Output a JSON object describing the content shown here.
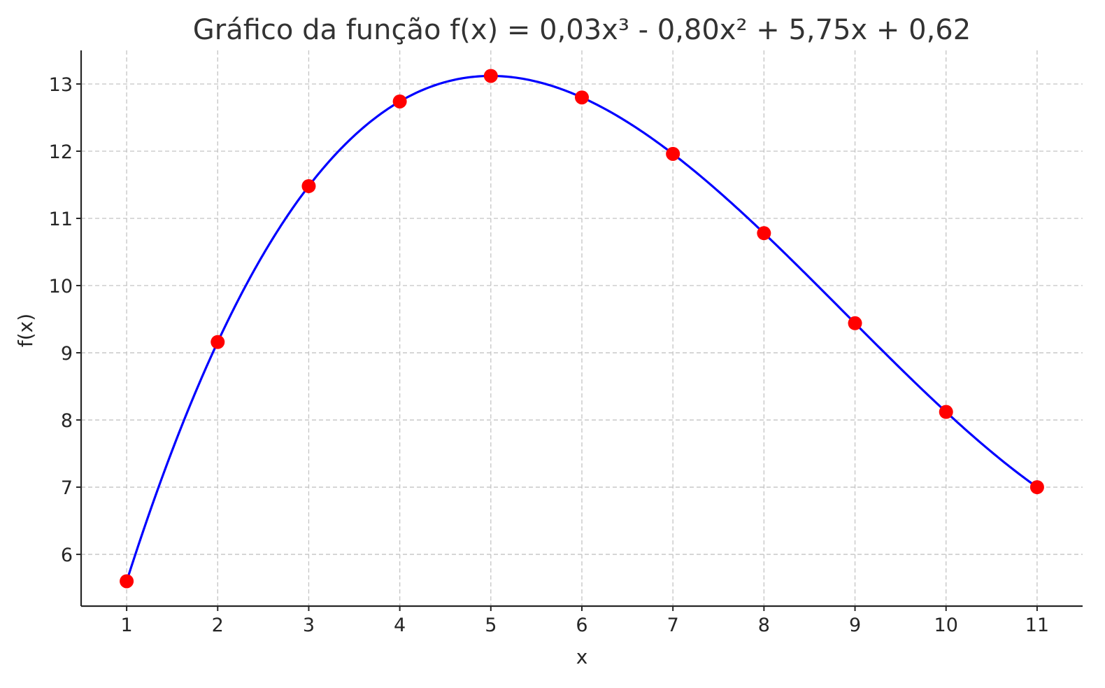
{
  "chart_data": {
    "type": "line",
    "title": "Gráfico da função f(x) = 0,03x³ - 0,80x² + 5,75x + 0,62",
    "xlabel": "x",
    "ylabel": "f(x)",
    "xlim": [
      0.5,
      11.5
    ],
    "ylim": [
      5.23,
      13.5
    ],
    "x_ticks": [
      "1",
      "2",
      "3",
      "4",
      "5",
      "6",
      "7",
      "8",
      "9",
      "10",
      "11"
    ],
    "y_ticks": [
      "6",
      "7",
      "8",
      "9",
      "10",
      "11",
      "12",
      "13"
    ],
    "grid": true,
    "legend": "none",
    "function": {
      "a": 0.03,
      "b": -0.8,
      "c": 5.75,
      "d": 0.62
    },
    "series": [
      {
        "type": "line",
        "color": "#0000ff",
        "x_range": [
          1,
          11
        ]
      },
      {
        "type": "scatter",
        "color": "#ff0000",
        "x": [
          1,
          2,
          3,
          4,
          5,
          6,
          7,
          8,
          9,
          10,
          11
        ],
        "y": [
          5.6,
          9.16,
          11.48,
          12.74,
          13.12,
          12.8,
          11.96,
          10.78,
          9.44,
          8.12,
          7.0
        ]
      }
    ]
  }
}
